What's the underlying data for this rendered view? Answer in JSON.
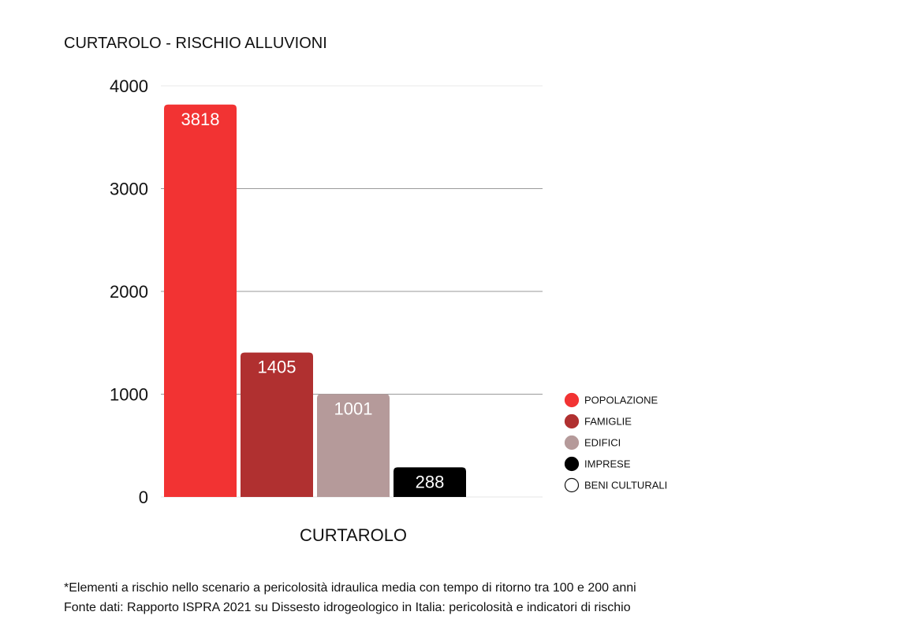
{
  "chart_data": {
    "type": "bar",
    "title": "CURTAROLO - RISCHIO ALLUVIONI",
    "categories": [
      "CURTAROLO"
    ],
    "xlabel": "CURTAROLO",
    "ylabel": "",
    "ylim": [
      0,
      4000
    ],
    "yticks": [
      "0",
      "1000",
      "2000",
      "3000",
      "4000"
    ],
    "grid": true,
    "legend_position": "right",
    "series": [
      {
        "name": "POPOLAZIONE",
        "values": [
          3818
        ],
        "label": "3818",
        "color": "#f23333"
      },
      {
        "name": "FAMIGLIE",
        "values": [
          1405
        ],
        "label": "1405",
        "color": "#b03030"
      },
      {
        "name": "EDIFICI",
        "values": [
          1001
        ],
        "label": "1001",
        "color": "#b59a9a"
      },
      {
        "name": "IMPRESE",
        "values": [
          288
        ],
        "label": "288",
        "color": "#000000"
      },
      {
        "name": "BENI CULTURALI",
        "values": [
          0
        ],
        "label": "",
        "color": "#ffffff"
      }
    ]
  },
  "footnotes": {
    "line1": "*Elementi a rischio nello scenario a pericolosità idraulica media con tempo di ritorno tra 100 e 200 anni",
    "line2": "Fonte dati: Rapporto ISPRA 2021 su Dissesto idrogeologico in Italia: pericolosità e indicatori di rischio"
  }
}
